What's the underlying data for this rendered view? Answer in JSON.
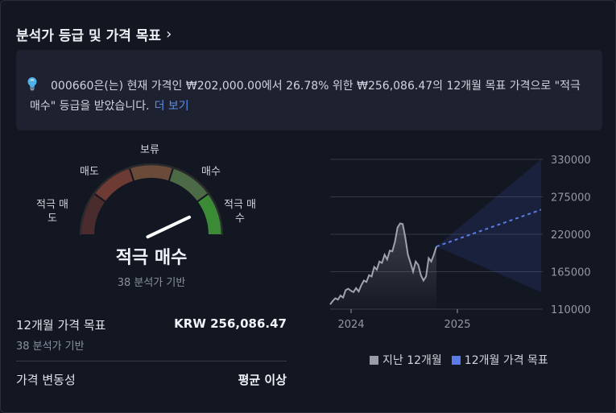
{
  "header": {
    "title": "분석가 등급 및 가격 목표",
    "chevron": "›"
  },
  "info": {
    "text": "000660은(는) 현재 가격인 ₩202,000.00에서 26.78% 위한 ₩256,086.47의 12개월 목표 가격으로 \"적극 매수\" 등급을 받았습니다.",
    "more_link": "더 보기",
    "icon": "lightbulb-icon"
  },
  "gauge": {
    "labels": {
      "strong_sell": "적극 매\n도",
      "sell": "매도",
      "neutral": "보류",
      "buy": "매수",
      "strong_buy": "적극 매\n수"
    },
    "value_fraction": 0.86,
    "colors": [
      "#4a2c2c",
      "#6e3a34",
      "#6a4a38",
      "#4c6a46",
      "#3b8a36"
    ]
  },
  "rating": {
    "label": "적극 매수",
    "sub": "38 분석가 기반"
  },
  "target": {
    "label": "12개월 가격 목표",
    "value": "KRW 256,086.47",
    "sub": "38 분석가 기반"
  },
  "volatility": {
    "label": "가격 변동성",
    "value": "평균 이상"
  },
  "chart_data": {
    "type": "line",
    "y_ticks": [
      "330000",
      "275000",
      "220000",
      "165000",
      "110000"
    ],
    "ylim": [
      110000,
      330000
    ],
    "x_ticks": [
      "2024",
      "2025"
    ],
    "series": [
      {
        "name": "지난 12개월",
        "color": "#a0a3ad",
        "values": [
          117000,
          122000,
          126000,
          124000,
          130000,
          127000,
          138000,
          140000,
          137000,
          135000,
          141000,
          136000,
          145000,
          152000,
          150000,
          160000,
          158000,
          172000,
          168000,
          180000,
          178000,
          190000,
          183000,
          196000,
          195000,
          209000,
          230000,
          236000,
          235000,
          215000,
          190000,
          178000,
          165000,
          180000,
          175000,
          160000,
          152000,
          158000,
          185000,
          180000,
          190000,
          202000
        ]
      },
      {
        "name": "12개월 가격 목표",
        "color": "#5b7be8",
        "values": [
          202000,
          256086.47
        ]
      }
    ],
    "forecast_high": 330000,
    "forecast_low": 135000
  }
}
